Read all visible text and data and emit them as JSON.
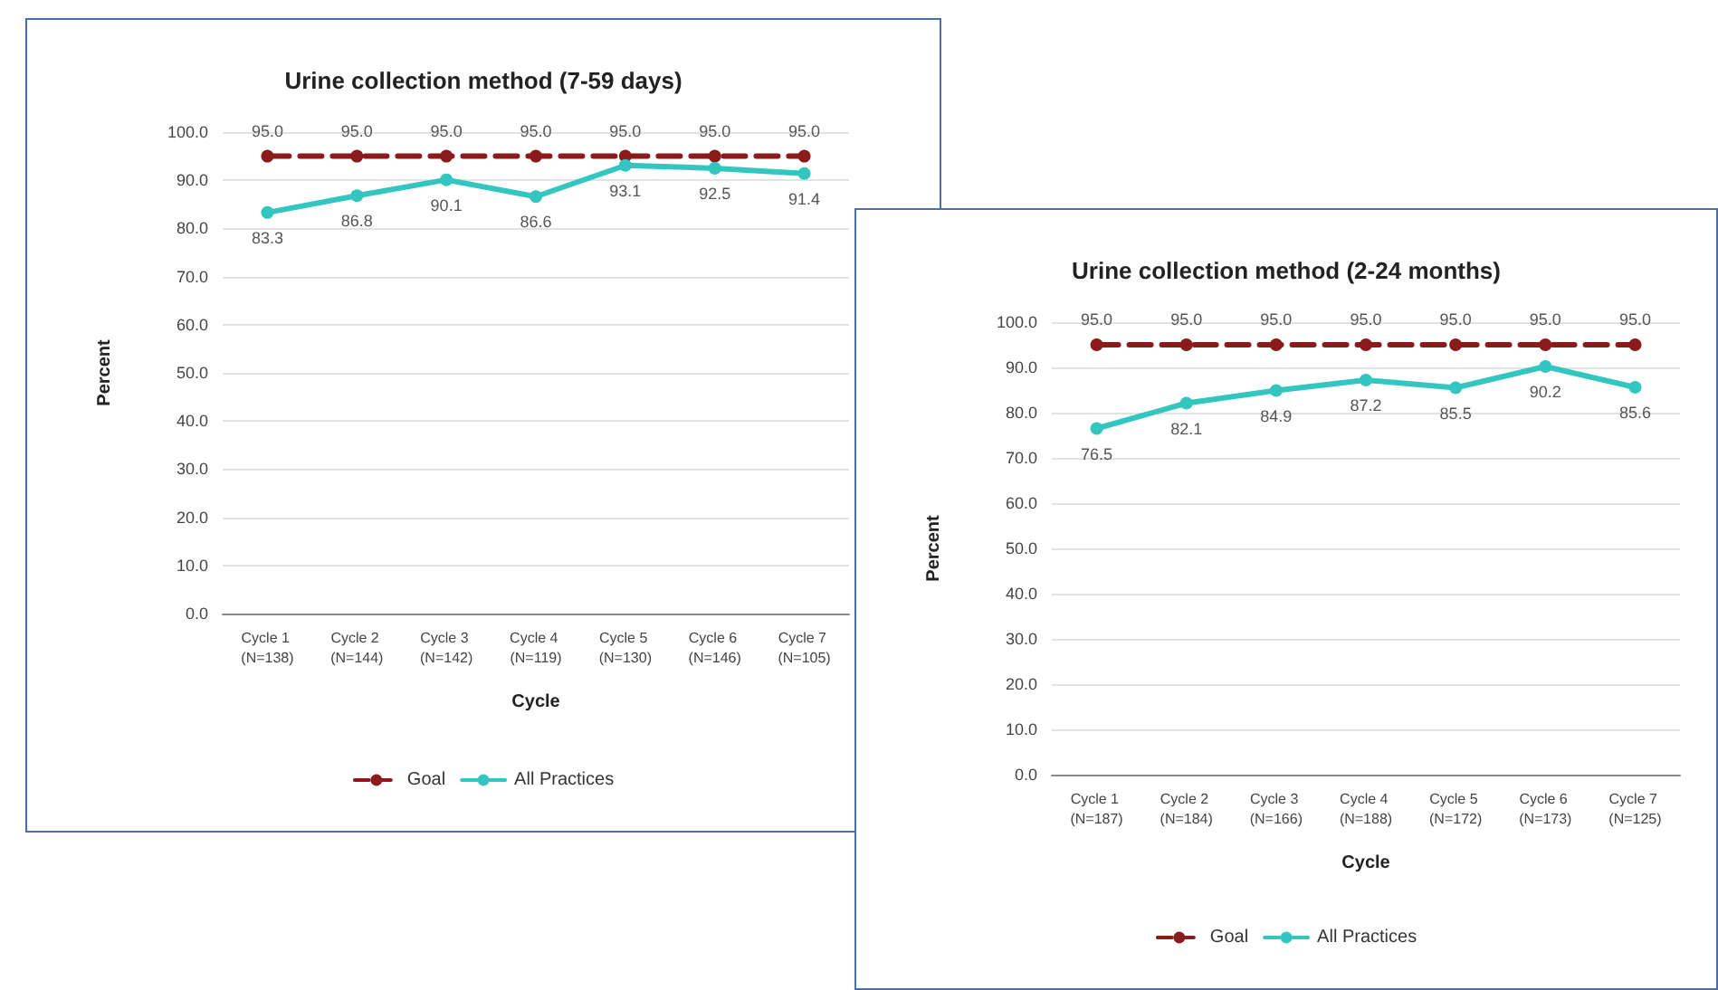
{
  "chart_data": [
    {
      "type": "line",
      "title": "Urine collection method (7-59 days)",
      "xlabel": "Cycle",
      "ylabel": "Percent",
      "categories": [
        "Cycle 1 (N=138)",
        "Cycle 2 (N=144)",
        "Cycle 3 (N=142)",
        "Cycle 4 (N=119)",
        "Cycle 5 (N=130)",
        "Cycle 6 (N=146)",
        "Cycle 7 (N=105)"
      ],
      "series": [
        {
          "name": "Goal",
          "color": "#8b1a1a",
          "values": [
            95,
            95,
            95,
            95,
            95,
            95,
            95
          ],
          "value_labels": [
            "95.0",
            "95.0",
            "95.0",
            "95.0",
            "95.0",
            "95.0",
            "95.0"
          ],
          "line_style": "dashed"
        },
        {
          "name": "All Practices",
          "color": "#33c6c0",
          "values": [
            83.3,
            86.8,
            90.1,
            86.6,
            93.1,
            92.5,
            91.4
          ],
          "value_labels": [
            "83.3",
            "86.8",
            "90.1",
            "86.6",
            "93.1",
            "92.5",
            "91.4"
          ],
          "line_style": "solid"
        }
      ],
      "ylim": [
        0,
        100
      ],
      "yticks": [
        {
          "value": 0,
          "label": "0.0"
        },
        {
          "value": 10,
          "label": "10.0"
        },
        {
          "value": 20,
          "label": "20.0"
        },
        {
          "value": 30,
          "label": "30.0"
        },
        {
          "value": 40,
          "label": "40.0"
        },
        {
          "value": 50,
          "label": "50.0"
        },
        {
          "value": 60,
          "label": "60.0"
        },
        {
          "value": 70,
          "label": "70.0"
        },
        {
          "value": 80,
          "label": "80.0"
        },
        {
          "value": 90,
          "label": "90.0"
        },
        {
          "value": 100,
          "label": "100.0"
        }
      ],
      "grid": "y",
      "legend": "bottom",
      "marker": "circle"
    },
    {
      "type": "line",
      "title": "Urine collection method (2-24 months)",
      "xlabel": "Cycle",
      "ylabel": "Percent",
      "categories": [
        "Cycle 1 (N=187)",
        "Cycle 2 (N=184)",
        "Cycle 3 (N=166)",
        "Cycle 4 (N=188)",
        "Cycle 5 (N=172)",
        "Cycle 6 (N=173)",
        "Cycle 7 (N=125)"
      ],
      "series": [
        {
          "name": "Goal",
          "color": "#8b1a1a",
          "values": [
            95,
            95,
            95,
            95,
            95,
            95,
            95
          ],
          "value_labels": [
            "95.0",
            "95.0",
            "95.0",
            "95.0",
            "95.0",
            "95.0",
            "95.0"
          ],
          "line_style": "dashed"
        },
        {
          "name": "All Practices",
          "color": "#33c6c0",
          "values": [
            76.5,
            82.1,
            84.9,
            87.2,
            85.5,
            90.2,
            85.6
          ],
          "value_labels": [
            "76.5",
            "82.1",
            "84.9",
            "87.2",
            "85.5",
            "90.2",
            "85.6"
          ],
          "line_style": "solid"
        }
      ],
      "ylim": [
        0,
        100
      ],
      "yticks": [
        {
          "value": 0,
          "label": "0.0"
        },
        {
          "value": 10,
          "label": "10.0"
        },
        {
          "value": 20,
          "label": "20.0"
        },
        {
          "value": 30,
          "label": "30.0"
        },
        {
          "value": 40,
          "label": "40.0"
        },
        {
          "value": 50,
          "label": "50.0"
        },
        {
          "value": 60,
          "label": "60.0"
        },
        {
          "value": 70,
          "label": "70.0"
        },
        {
          "value": 80,
          "label": "80.0"
        },
        {
          "value": 90,
          "label": "90.0"
        },
        {
          "value": 100,
          "label": "100.0"
        }
      ],
      "grid": "y",
      "legend": "bottom",
      "marker": "circle"
    }
  ]
}
